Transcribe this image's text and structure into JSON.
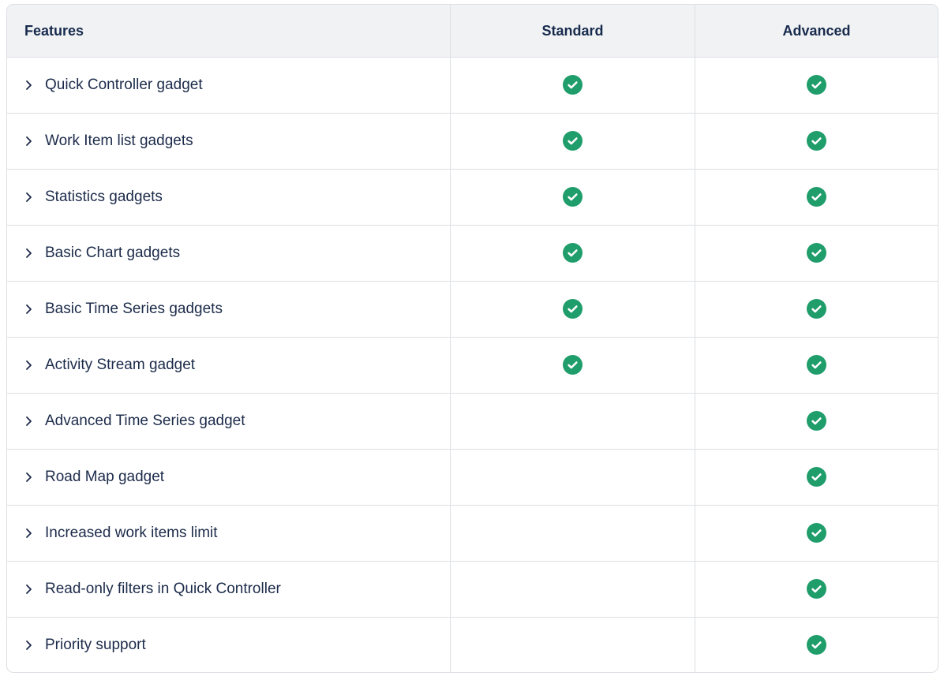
{
  "header": {
    "features": "Features",
    "standard": "Standard",
    "advanced": "Advanced"
  },
  "colors": {
    "check": "#1f9d6b",
    "text": "#1c2b4a",
    "header_bg": "#f1f2f4"
  },
  "rows": [
    {
      "label": "Quick Controller gadget",
      "standard": true,
      "advanced": true
    },
    {
      "label": "Work Item list gadgets",
      "standard": true,
      "advanced": true
    },
    {
      "label": "Statistics gadgets",
      "standard": true,
      "advanced": true
    },
    {
      "label": "Basic Chart gadgets",
      "standard": true,
      "advanced": true
    },
    {
      "label": "Basic Time Series gadgets",
      "standard": true,
      "advanced": true
    },
    {
      "label": "Activity Stream gadget",
      "standard": true,
      "advanced": true
    },
    {
      "label": "Advanced Time Series gadget",
      "standard": false,
      "advanced": true
    },
    {
      "label": "Road Map gadget",
      "standard": false,
      "advanced": true
    },
    {
      "label": "Increased work items limit",
      "standard": false,
      "advanced": true
    },
    {
      "label": "Read-only filters in Quick Controller",
      "standard": false,
      "advanced": true
    },
    {
      "label": "Priority support",
      "standard": false,
      "advanced": true
    }
  ]
}
